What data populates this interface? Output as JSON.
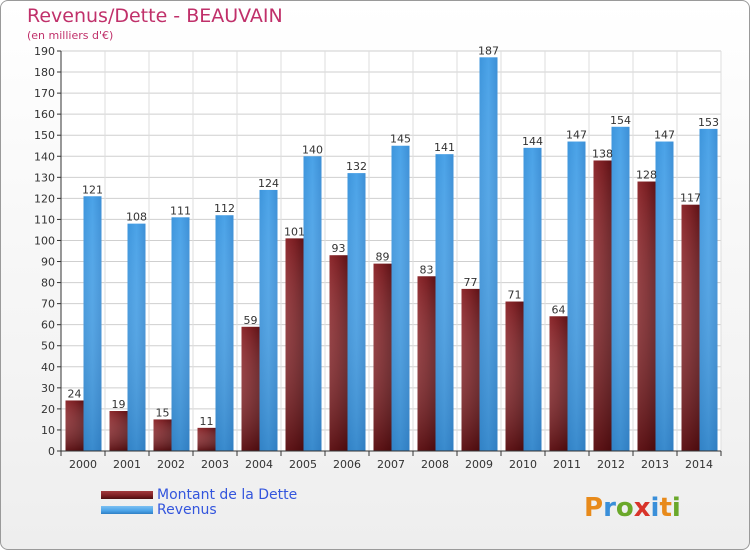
{
  "chart_data": {
    "type": "bar",
    "title": "Revenus/Dette - BEAUVAIN",
    "subtitle": "(en milliers d'€)",
    "categories": [
      "2000",
      "2001",
      "2002",
      "2003",
      "2004",
      "2005",
      "2006",
      "2007",
      "2008",
      "2009",
      "2010",
      "2011",
      "2012",
      "2013",
      "2014"
    ],
    "series": [
      {
        "name": "Montant de la Dette",
        "color": "#7a1e22",
        "values": [
          24,
          19,
          15,
          11,
          59,
          101,
          93,
          89,
          83,
          77,
          71,
          64,
          138,
          128,
          117
        ]
      },
      {
        "name": "Revenus",
        "color": "#4ba3e8",
        "values": [
          121,
          108,
          111,
          112,
          124,
          140,
          132,
          145,
          141,
          187,
          144,
          147,
          154,
          147,
          153
        ]
      }
    ],
    "ylim": [
      0,
      190
    ],
    "ytick_step": 10,
    "grid": true,
    "legend": "bottom-left"
  },
  "logo": {
    "text": "Proxiti"
  }
}
